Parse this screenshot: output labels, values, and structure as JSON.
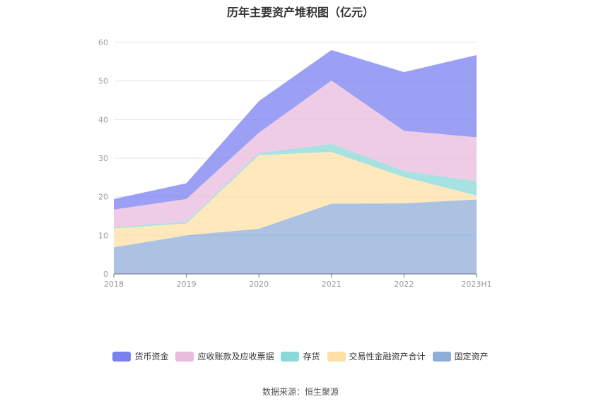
{
  "chart_data": {
    "type": "area",
    "stacked": true,
    "title": "历年主要资产堆积图（亿元）",
    "categories": [
      "2018",
      "2019",
      "2020",
      "2021",
      "2022",
      "2023H1"
    ],
    "ylim": [
      0,
      60
    ],
    "yticks": [
      "0",
      "10",
      "20",
      "30",
      "40",
      "50",
      "60"
    ],
    "grid": true,
    "legend_position": "bottom",
    "series": [
      {
        "name": "固定资产",
        "color": "#8fadd9",
        "values": [
          6.9,
          10.0,
          11.7,
          18.2,
          18.3,
          19.3
        ]
      },
      {
        "name": "交易性金融资产合计",
        "color": "#fde0a6",
        "values": [
          4.9,
          3.1,
          19.1,
          13.4,
          6.8,
          1.0
        ]
      },
      {
        "name": "存货",
        "color": "#8ad8d8",
        "values": [
          0.3,
          0.4,
          0.5,
          2.1,
          1.6,
          3.7
        ]
      },
      {
        "name": "应收账款及应收票据",
        "color": "#e9bbdc",
        "values": [
          4.6,
          5.9,
          5.3,
          16.4,
          10.4,
          11.4
        ]
      },
      {
        "name": "货币资金",
        "color": "#7b80f0",
        "values": [
          2.7,
          4.1,
          8.2,
          7.9,
          15.2,
          21.3
        ]
      }
    ]
  },
  "legend_order": [
    "货币资金",
    "应收账款及应收票据",
    "存货",
    "交易性金融资产合计",
    "固定资产"
  ],
  "source": "数据来源：恒生聚源"
}
